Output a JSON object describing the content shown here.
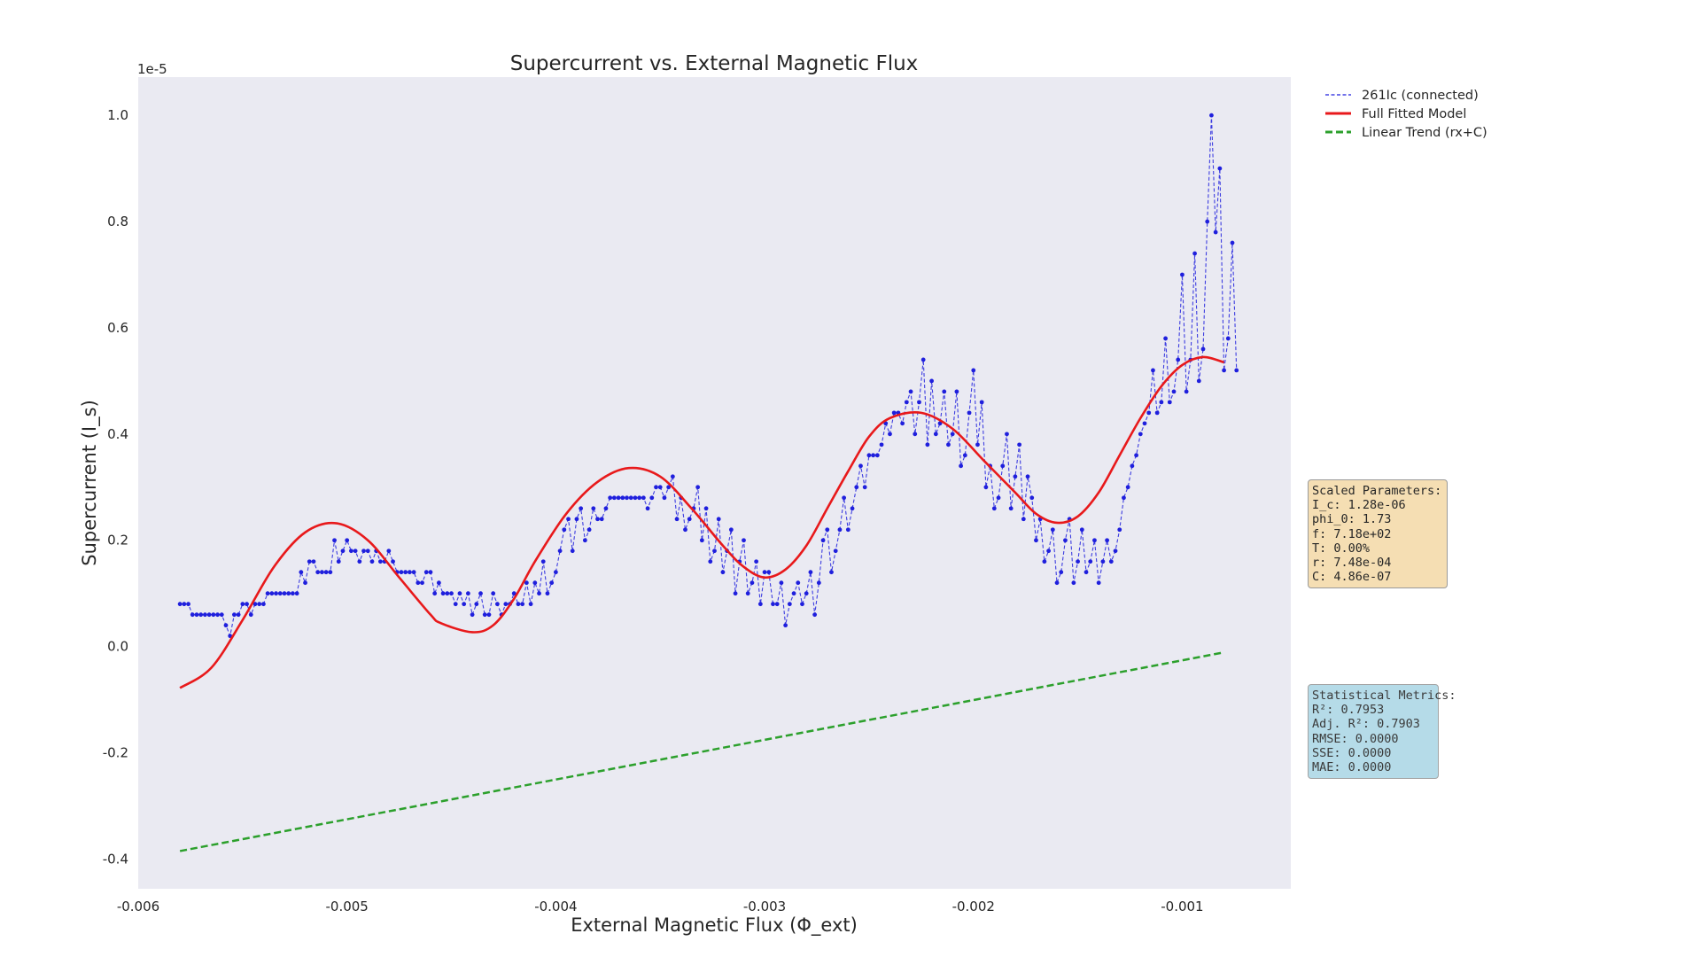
{
  "chart_data": {
    "type": "line",
    "title": "Supercurrent vs. External Magnetic Flux",
    "xlabel": "External Magnetic Flux (Φ_ext)",
    "ylabel": "Supercurrent (I_s)",
    "y_offset_label": "1e-5",
    "xlim": [
      -0.006,
      -0.00048
    ],
    "ylim": [
      -0.456,
      1.072
    ],
    "x_ticks": [
      -0.006,
      -0.005,
      -0.004,
      -0.003,
      -0.002,
      -0.001
    ],
    "x_tick_labels": [
      "-0.006",
      "-0.005",
      "-0.004",
      "-0.003",
      "-0.002",
      "-0.001"
    ],
    "y_ticks": [
      -0.4,
      -0.2,
      0.0,
      0.2,
      0.4,
      0.6,
      0.8,
      1.0
    ],
    "y_tick_labels": [
      "-0.4",
      "-0.2",
      "0.0",
      "0.2",
      "0.4",
      "0.6",
      "0.8",
      "1.0"
    ],
    "grid": false,
    "background": "#eaeaf2",
    "legend_position": "outside-right-top",
    "series": [
      {
        "name": "261Ic (connected)",
        "kind": "data",
        "color": "#1f1fdd",
        "style": "dashed-markers",
        "x_start": -0.0058,
        "x_step": 2e-05,
        "y": [
          0.08,
          0.08,
          0.08,
          0.06,
          0.06,
          0.06,
          0.06,
          0.06,
          0.06,
          0.06,
          0.06,
          0.04,
          0.02,
          0.06,
          0.06,
          0.08,
          0.08,
          0.06,
          0.08,
          0.08,
          0.08,
          0.1,
          0.1,
          0.1,
          0.1,
          0.1,
          0.1,
          0.1,
          0.1,
          0.14,
          0.12,
          0.16,
          0.16,
          0.14,
          0.14,
          0.14,
          0.14,
          0.2,
          0.16,
          0.18,
          0.2,
          0.18,
          0.18,
          0.16,
          0.18,
          0.18,
          0.16,
          0.18,
          0.16,
          0.16,
          0.18,
          0.16,
          0.14,
          0.14,
          0.14,
          0.14,
          0.14,
          0.12,
          0.12,
          0.14,
          0.14,
          0.1,
          0.12,
          0.1,
          0.1,
          0.1,
          0.08,
          0.1,
          0.08,
          0.1,
          0.06,
          0.08,
          0.1,
          0.06,
          0.06,
          0.1,
          0.08,
          0.06,
          0.08,
          0.08,
          0.1,
          0.08,
          0.08,
          0.12,
          0.08,
          0.12,
          0.1,
          0.16,
          0.1,
          0.12,
          0.14,
          0.18,
          0.22,
          0.24,
          0.18,
          0.24,
          0.26,
          0.2,
          0.22,
          0.26,
          0.24,
          0.24,
          0.26,
          0.28,
          0.28,
          0.28,
          0.28,
          0.28,
          0.28,
          0.28,
          0.28,
          0.28,
          0.26,
          0.28,
          0.3,
          0.3,
          0.28,
          0.3,
          0.32,
          0.24,
          0.28,
          0.22,
          0.24,
          0.26,
          0.3,
          0.2,
          0.26,
          0.16,
          0.18,
          0.24,
          0.14,
          0.18,
          0.22,
          0.1,
          0.16,
          0.2,
          0.1,
          0.12,
          0.16,
          0.08,
          0.14,
          0.14,
          0.08,
          0.08,
          0.12,
          0.04,
          0.08,
          0.1,
          0.12,
          0.08,
          0.1,
          0.14,
          0.06,
          0.12,
          0.2,
          0.22,
          0.14,
          0.18,
          0.22,
          0.28,
          0.22,
          0.26,
          0.3,
          0.34,
          0.3,
          0.36,
          0.36,
          0.36,
          0.38,
          0.42,
          0.4,
          0.44,
          0.44,
          0.42,
          0.46,
          0.48,
          0.4,
          0.46,
          0.54,
          0.38,
          0.5,
          0.4,
          0.42,
          0.48,
          0.38,
          0.4,
          0.48,
          0.34,
          0.36,
          0.44,
          0.52,
          0.38,
          0.46,
          0.3,
          0.34,
          0.26,
          0.28,
          0.34,
          0.4,
          0.26,
          0.32,
          0.38,
          0.24,
          0.32,
          0.28,
          0.2,
          0.24,
          0.16,
          0.18,
          0.22,
          0.12,
          0.14,
          0.2,
          0.24,
          0.12,
          0.16,
          0.22,
          0.14,
          0.16,
          0.2,
          0.12,
          0.16,
          0.2,
          0.16,
          0.18,
          0.22,
          0.28,
          0.3,
          0.34,
          0.36,
          0.4,
          0.42,
          0.44,
          0.52,
          0.44,
          0.46,
          0.58,
          0.46,
          0.48,
          0.54,
          0.7,
          0.48,
          0.54,
          0.74,
          0.5,
          0.56,
          0.8,
          1.0,
          0.78,
          0.9,
          0.52,
          0.58,
          0.76,
          0.52
        ]
      },
      {
        "name": "Full Fitted Model",
        "kind": "fit",
        "color": "#e8191b",
        "style": "solid",
        "x": [
          -0.0058,
          -0.00565,
          -0.0055,
          -0.00535,
          -0.0052,
          -0.00505,
          -0.0049,
          -0.00475,
          -0.0046,
          -0.00455,
          -0.0044,
          -0.0043,
          -0.0042,
          -0.0041,
          -0.00395,
          -0.0038,
          -0.00365,
          -0.0035,
          -0.00335,
          -0.0032,
          -0.0031,
          -0.003,
          -0.0029,
          -0.0028,
          -0.0027,
          -0.0026,
          -0.0025,
          -0.0024,
          -0.00225,
          -0.0021,
          -0.00195,
          -0.0018,
          -0.0017,
          -0.0016,
          -0.0015,
          -0.0014,
          -0.0013,
          -0.0012,
          -0.0011,
          -0.001,
          -0.0009,
          -0.0008
        ],
        "y": [
          -0.078,
          -0.04,
          0.05,
          0.15,
          0.215,
          0.232,
          0.2,
          0.13,
          0.06,
          0.044,
          0.027,
          0.04,
          0.09,
          0.16,
          0.25,
          0.31,
          0.336,
          0.32,
          0.26,
          0.19,
          0.15,
          0.13,
          0.145,
          0.19,
          0.26,
          0.33,
          0.395,
          0.43,
          0.44,
          0.41,
          0.35,
          0.29,
          0.25,
          0.233,
          0.245,
          0.29,
          0.36,
          0.43,
          0.49,
          0.53,
          0.545,
          0.535
        ]
      },
      {
        "name": "Linear Trend (rx+C)",
        "kind": "trend",
        "color": "#2ca02c",
        "style": "dashed",
        "x": [
          -0.0058,
          -0.0008
        ],
        "y": [
          -0.385,
          -0.011
        ]
      }
    ]
  },
  "params_box": {
    "title": "Scaled Parameters:",
    "lines": [
      "I_c: 1.28e-06",
      "phi_0: 1.73",
      "f: 7.18e+02",
      "T: 0.00%",
      "r: 7.48e-04",
      "C: 4.86e-07"
    ],
    "color": "#f5deb3"
  },
  "metrics_box": {
    "title": "Statistical Metrics:",
    "lines": [
      "R²: 0.7953",
      "Adj. R²: 0.7903",
      "RMSE: 0.0000",
      "SSE: 0.0000",
      "MAE: 0.0000"
    ],
    "color": "#add8e6"
  }
}
